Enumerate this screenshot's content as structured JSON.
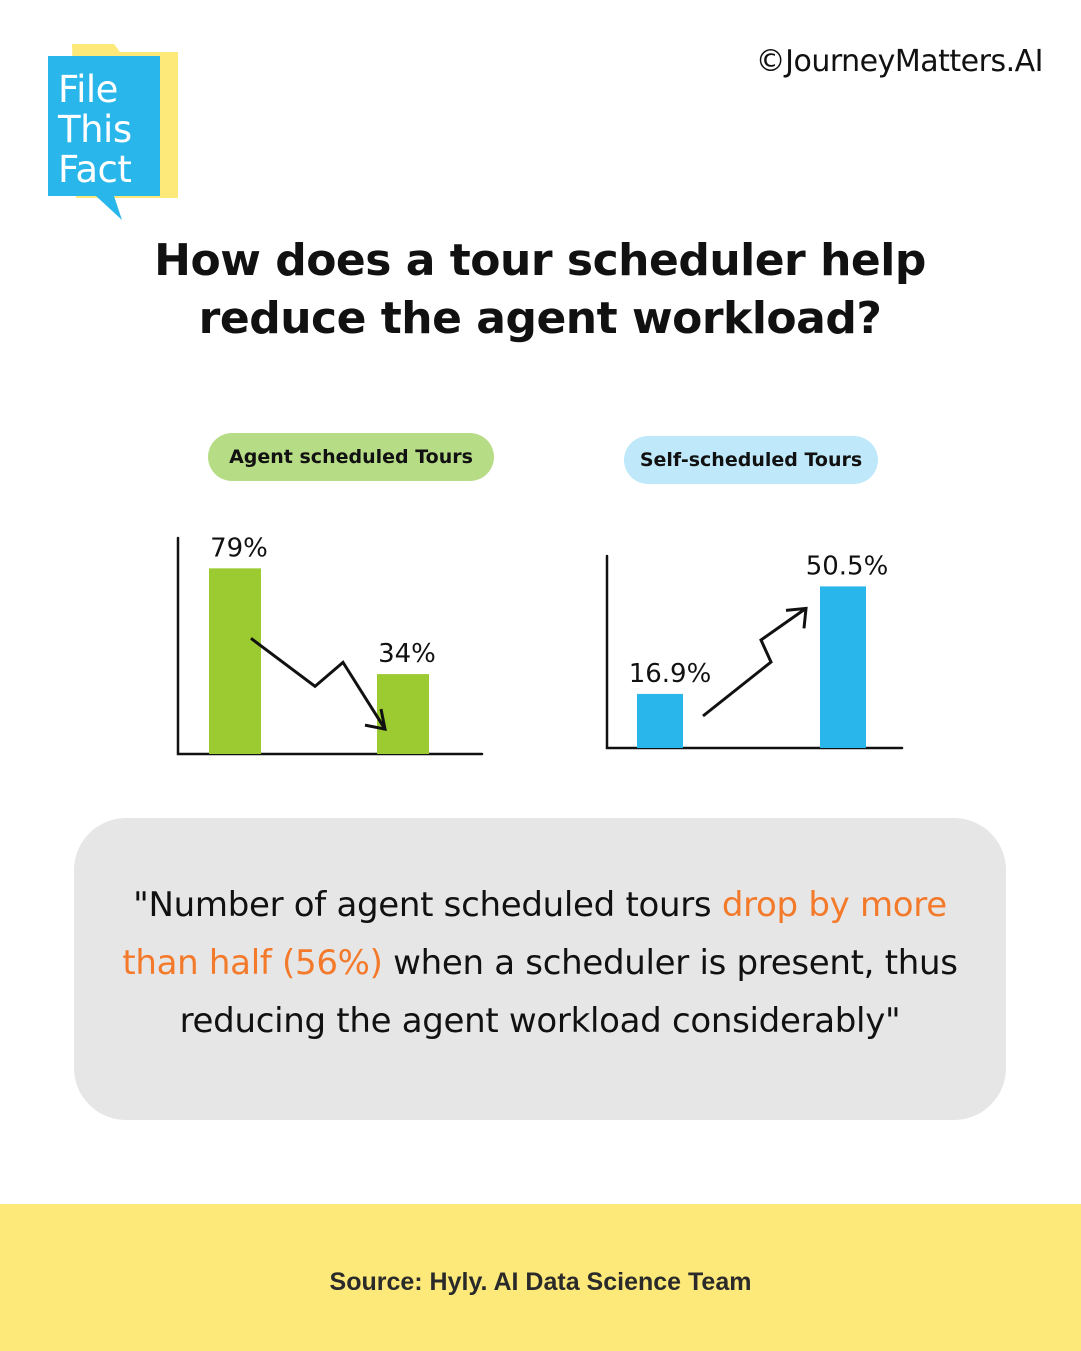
{
  "brand": {
    "logo_lines": [
      "File",
      "This",
      "Fact"
    ],
    "copyright": "©JourneyMatters.AI",
    "logo_color": "#29b6ea",
    "logo_shadow_color": "#fde97a"
  },
  "headline": {
    "line1": "How does a tour scheduler help",
    "line2": "reduce the agent workload?"
  },
  "chart_data": [
    {
      "type": "bar",
      "title": "Agent scheduled Tours",
      "categories": [
        "",
        ""
      ],
      "values": [
        79,
        34
      ],
      "value_labels": [
        "79%",
        "34%"
      ],
      "unit": "%",
      "ylim": [
        0,
        100
      ],
      "color": "#9bca31",
      "trend": "down",
      "grid": false
    },
    {
      "type": "bar",
      "title": "Self-scheduled Tours",
      "categories": [
        "",
        ""
      ],
      "values": [
        16.9,
        50.5
      ],
      "value_labels": [
        "16.9%",
        "50.5%"
      ],
      "unit": "%",
      "ylim": [
        0,
        100
      ],
      "color": "#29b6ea",
      "trend": "up",
      "grid": false
    }
  ],
  "quote": {
    "part1": "\"Number of agent scheduled tours ",
    "highlight": "drop by more than half (56%)",
    "part2": " when a scheduler is present, thus reducing the agent workload considerably\"",
    "highlight_color": "#f47a2b"
  },
  "footer": {
    "source": "Source: Hyly. AI Data Science Team",
    "background": "#fde97a"
  }
}
